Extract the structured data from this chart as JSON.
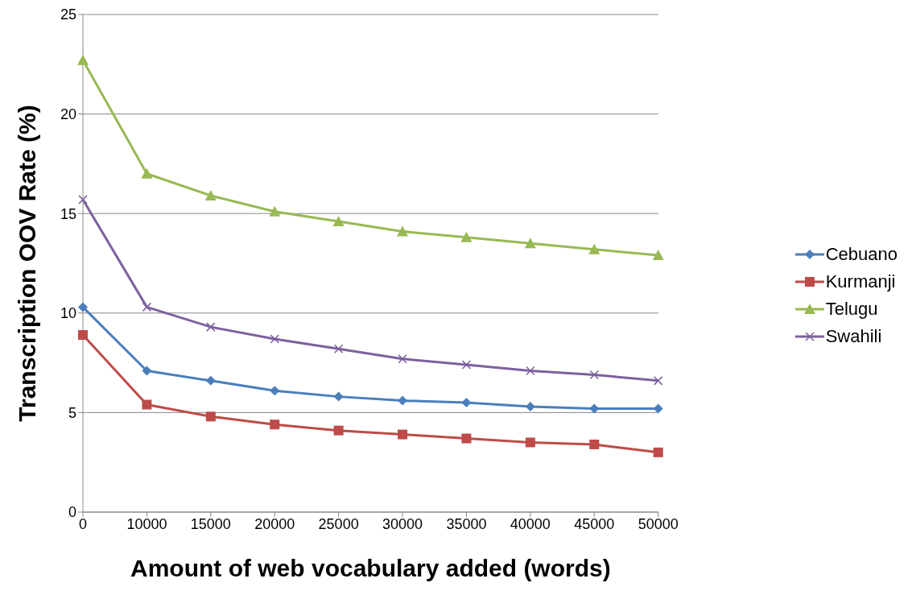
{
  "chart_data": {
    "type": "line",
    "xlabel": "Amount of web vocabulary added (words)",
    "ylabel": "Transcription OOV Rate (%)",
    "categories": [
      "0",
      "10000",
      "15000",
      "20000",
      "25000",
      "30000",
      "35000",
      "40000",
      "45000",
      "50000"
    ],
    "series": [
      {
        "name": "Cebuano",
        "color": "#4a7ebb",
        "marker": "diamond",
        "values": [
          10.3,
          7.1,
          6.6,
          6.1,
          5.8,
          5.6,
          5.5,
          5.3,
          5.2,
          5.2
        ]
      },
      {
        "name": "Kurmanji",
        "color": "#be4b48",
        "marker": "square",
        "values": [
          8.9,
          5.4,
          4.8,
          4.4,
          4.1,
          3.9,
          3.7,
          3.5,
          3.4,
          3.0
        ]
      },
      {
        "name": "Telugu",
        "color": "#98b954",
        "marker": "triangle",
        "values": [
          22.7,
          17.0,
          15.9,
          15.1,
          14.6,
          14.1,
          13.8,
          13.5,
          13.2,
          12.9
        ]
      },
      {
        "name": "Swahili",
        "color": "#7d60a0",
        "marker": "cross",
        "values": [
          15.7,
          10.3,
          9.3,
          8.7,
          8.2,
          7.7,
          7.4,
          7.1,
          6.9,
          6.6
        ]
      }
    ],
    "ylim": [
      0,
      25
    ],
    "yticks": [
      0,
      5,
      10,
      15,
      20,
      25
    ],
    "grid": "y",
    "legend": "right",
    "line_style": "solid"
  }
}
